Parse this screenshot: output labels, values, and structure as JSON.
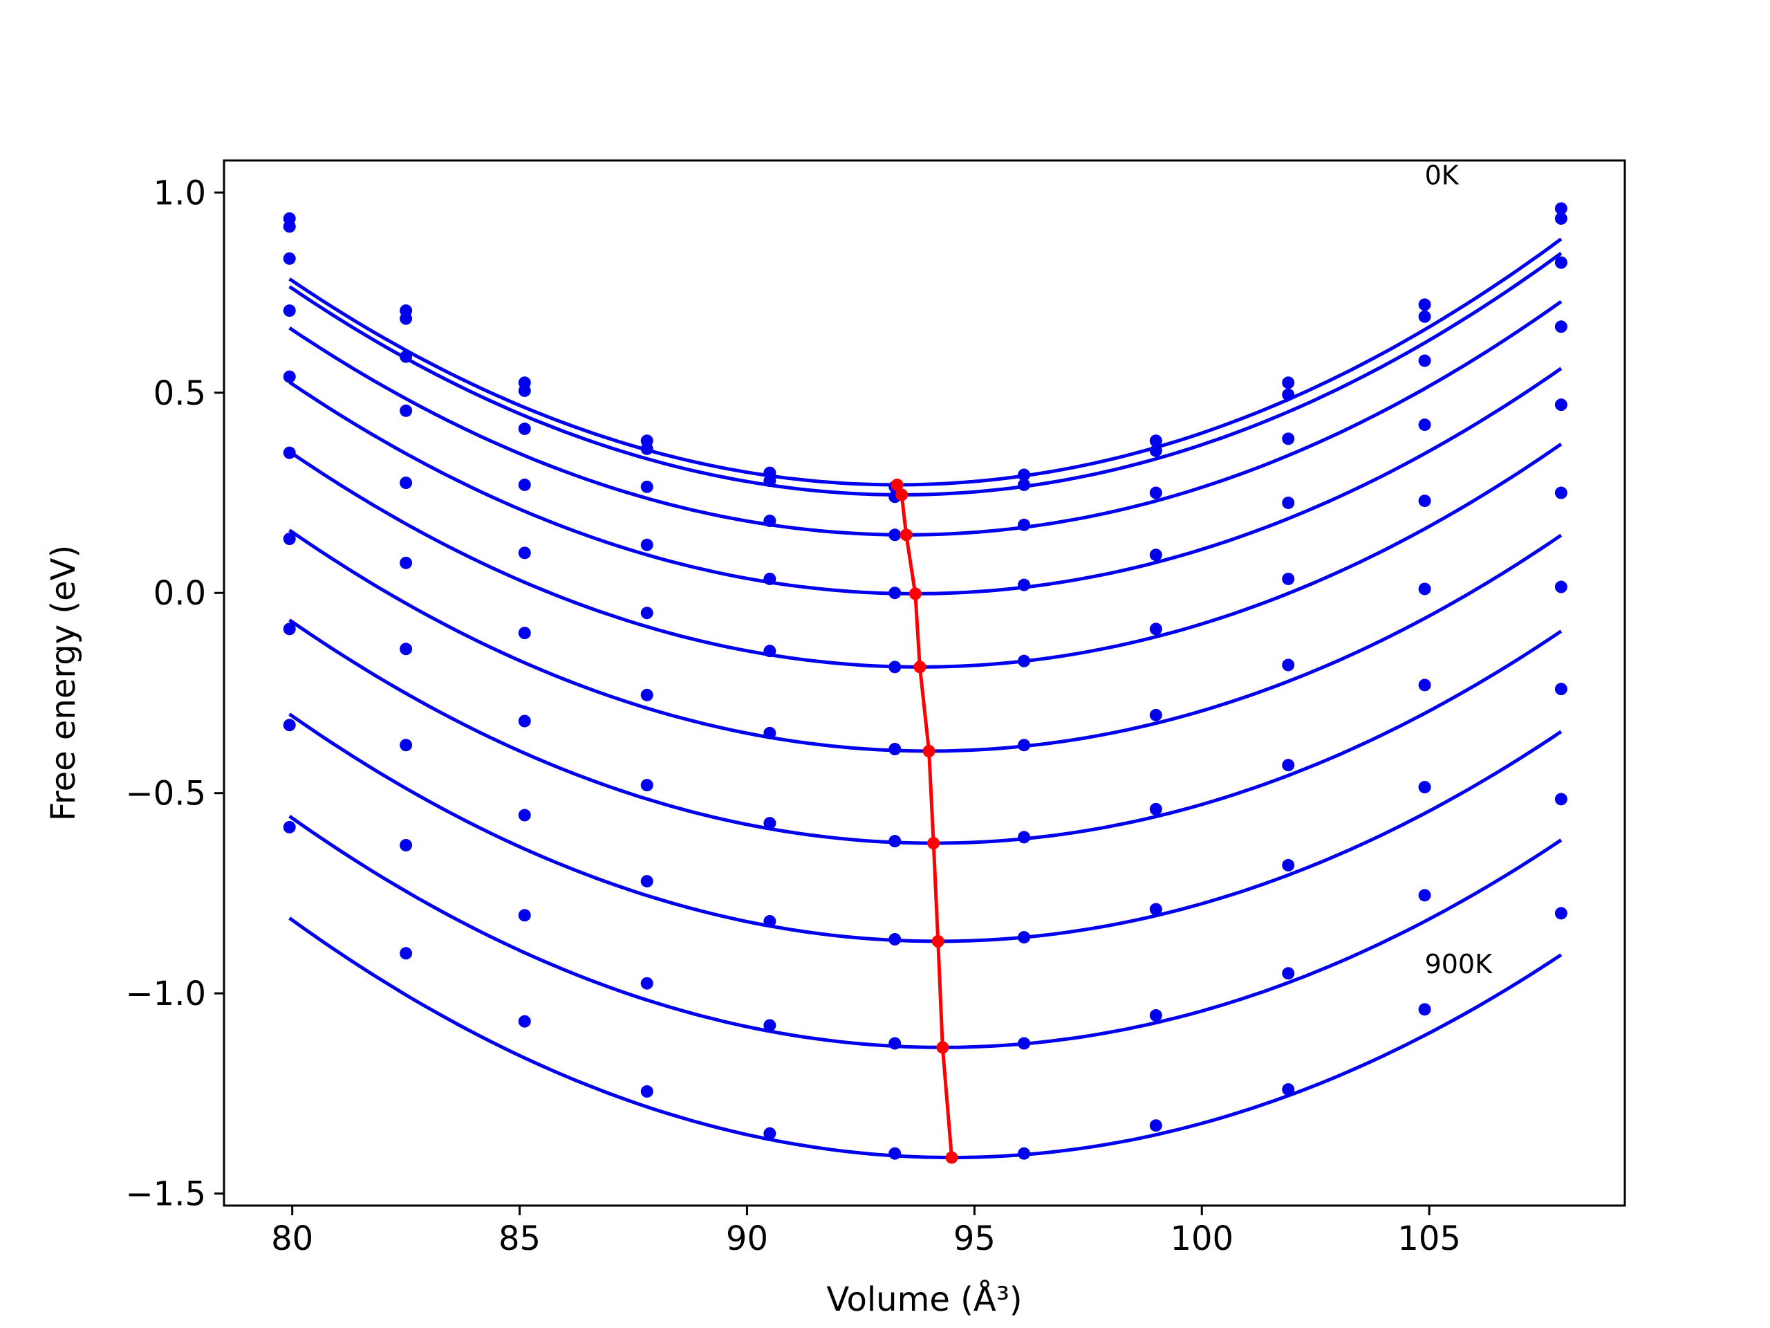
{
  "chart_data": {
    "type": "line",
    "xlabel": "Volume (Å³)",
    "ylabel": "Free energy (eV)",
    "xlim": [
      78.5,
      109.3
    ],
    "ylim": [
      -1.53,
      1.08
    ],
    "x_ticks": [
      80,
      85,
      90,
      95,
      100,
      105
    ],
    "x_tick_labels": [
      "80",
      "85",
      "90",
      "95",
      "100",
      "105"
    ],
    "y_ticks": [
      -1.5,
      -1.0,
      -0.5,
      0.0,
      0.5,
      1.0
    ],
    "y_tick_labels": [
      "−1.5",
      "−1.0",
      "−0.5",
      "0.0",
      "0.5",
      "1.0"
    ],
    "grid": false,
    "annotations": [
      {
        "text": "0K",
        "x": 104.9,
        "y": 1.02
      },
      {
        "text": "900K",
        "x": 104.9,
        "y": -0.95
      }
    ],
    "x": [
      79.94,
      82.5,
      85.11,
      87.8,
      90.5,
      93.25,
      96.09,
      98.99,
      101.9,
      104.9,
      107.9
    ],
    "series": [
      {
        "values": [
          0.935,
          0.705,
          0.525,
          0.38,
          0.3,
          0.265,
          0.295,
          0.38,
          0.525,
          0.72,
          0.96
        ],
        "min": [
          93.3,
          0.27
        ],
        "fit": [
          0.00288,
          93.3,
          0.27
        ]
      },
      {
        "values": [
          0.915,
          0.685,
          0.505,
          0.36,
          0.28,
          0.24,
          0.27,
          0.355,
          0.495,
          0.69,
          0.935
        ],
        "min": [
          93.4,
          0.245
        ],
        "fit": [
          0.00287,
          93.4,
          0.245
        ]
      },
      {
        "values": [
          0.835,
          0.59,
          0.41,
          0.265,
          0.18,
          0.145,
          0.17,
          0.25,
          0.385,
          0.58,
          0.825
        ],
        "min": [
          93.5,
          0.145
        ],
        "fit": [
          0.00281,
          93.5,
          0.145
        ]
      },
      {
        "values": [
          0.705,
          0.455,
          0.27,
          0.12,
          0.035,
          0.0,
          0.02,
          0.095,
          0.225,
          0.42,
          0.665
        ],
        "min": [
          93.7,
          -0.002
        ],
        "fit": [
          0.00279,
          93.7,
          -0.002
        ]
      },
      {
        "values": [
          0.54,
          0.275,
          0.1,
          -0.05,
          -0.145,
          -0.185,
          -0.17,
          -0.09,
          0.035,
          0.23,
          0.47
        ],
        "min": [
          93.8,
          -0.185
        ],
        "fit": [
          0.0028,
          93.8,
          -0.185
        ]
      },
      {
        "values": [
          0.35,
          0.075,
          -0.1,
          -0.255,
          -0.35,
          -0.39,
          -0.38,
          -0.305,
          -0.18,
          0.01,
          0.25
        ],
        "min": [
          94.0,
          -0.395
        ],
        "fit": [
          0.00279,
          94.0,
          -0.395
        ]
      },
      {
        "values": [
          0.135,
          -0.14,
          -0.32,
          -0.48,
          -0.575,
          -0.62,
          -0.61,
          -0.54,
          -0.43,
          -0.23,
          0.015
        ],
        "min": [
          94.1,
          -0.625
        ],
        "fit": [
          0.00278,
          94.1,
          -0.625
        ]
      },
      {
        "values": [
          -0.09,
          -0.38,
          -0.555,
          -0.72,
          -0.82,
          -0.865,
          -0.86,
          -0.79,
          -0.68,
          -0.485,
          -0.24
        ],
        "min": [
          94.2,
          -0.87
        ],
        "fit": [
          0.00279,
          94.2,
          -0.87
        ]
      },
      {
        "values": [
          -0.33,
          -0.63,
          -0.805,
          -0.975,
          -1.08,
          -1.125,
          -1.125,
          -1.055,
          -0.95,
          -0.755,
          -0.515
        ],
        "min": [
          94.3,
          -1.135
        ],
        "fit": [
          0.0028,
          94.3,
          -1.135
        ]
      },
      {
        "values": [
          -0.585,
          -0.9,
          -1.07,
          -1.245,
          -1.35,
          -1.4,
          -1.4,
          -1.33,
          -1.24,
          -1.04,
          -0.8
        ],
        "min": [
          94.5,
          -1.41
        ],
        "fit": [
          0.00282,
          94.5,
          -1.41
        ]
      }
    ],
    "series_color": "#0000ee",
    "minimum_line_color": "#ff0000"
  }
}
